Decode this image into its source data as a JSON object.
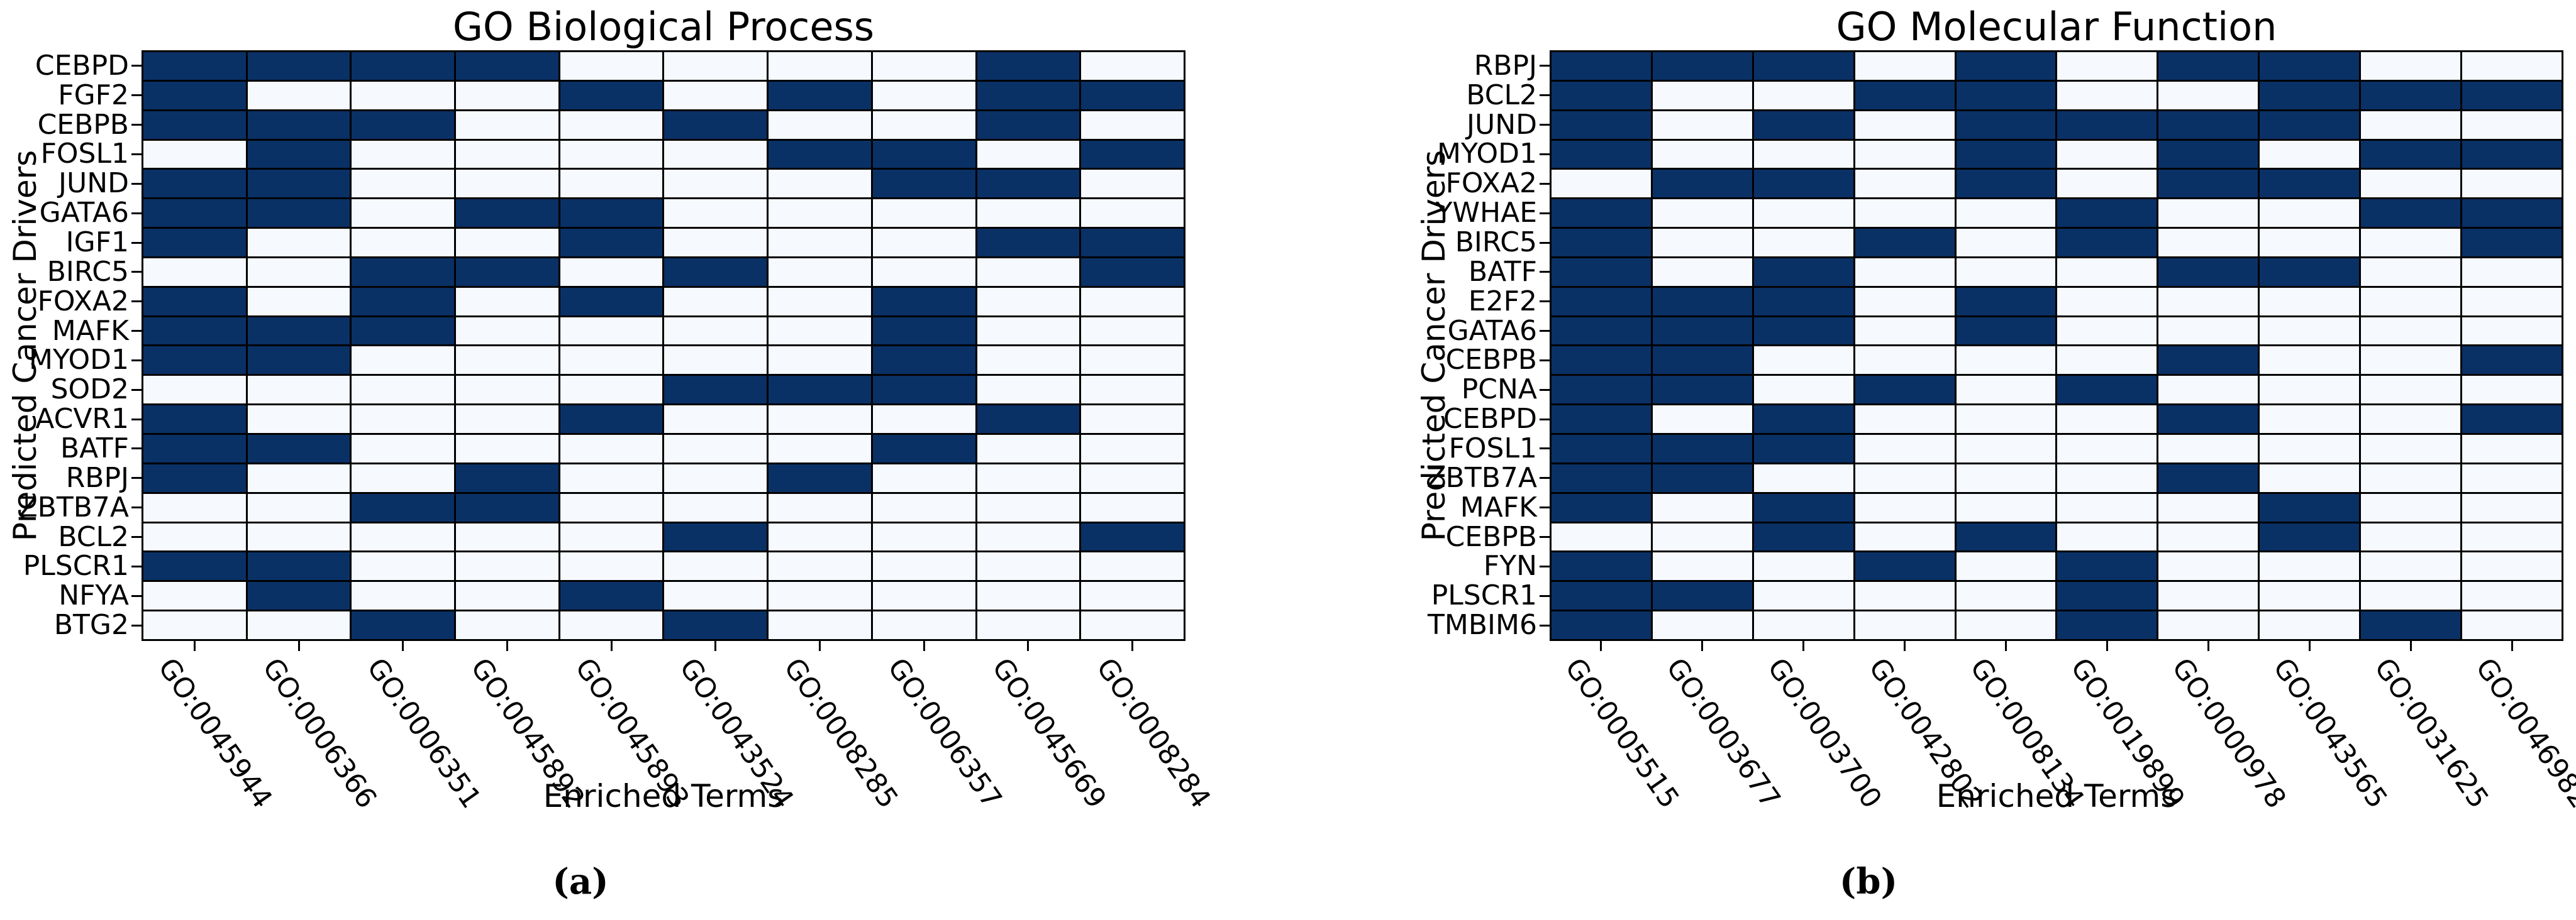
{
  "figure": {
    "background": "#ffffff",
    "cell_on_color": "#0a3166",
    "cell_off_color": "#f6f9fd",
    "grid_line_color": "#000000",
    "captions": {
      "a": "(a)",
      "b": "(b)"
    }
  },
  "chart_data": [
    {
      "type": "heatmap",
      "title": "GO Biological Process",
      "xlabel": "Enriched Terms",
      "ylabel": "Predicted Cancer Drivers",
      "value_encoding": "1 = enriched (dark navy cell), 0 = not enriched (pale cell)",
      "rows": [
        "CEBPD",
        "FGF2",
        "CEBPB",
        "FOSL1",
        "JUND",
        "GATA6",
        "IGF1",
        "BIRC5",
        "FOXA2",
        "MAFK",
        "MYOD1",
        "SOD2",
        "ACVR1",
        "BATF",
        "RBPJ",
        "ZBTB7A",
        "BCL2",
        "PLSCR1",
        "NFYA",
        "BTG2"
      ],
      "columns": [
        "GO:0045944",
        "GO:0006366",
        "GO:0006351",
        "GO:0045892",
        "GO:0045893",
        "GO:0043524",
        "GO:0008285",
        "GO:0006357",
        "GO:0045669",
        "GO:0008284"
      ],
      "values": [
        [
          1,
          1,
          1,
          1,
          0,
          0,
          0,
          0,
          1,
          0
        ],
        [
          1,
          0,
          0,
          0,
          1,
          0,
          1,
          0,
          1,
          1
        ],
        [
          1,
          1,
          1,
          0,
          0,
          1,
          0,
          0,
          1,
          0
        ],
        [
          0,
          1,
          0,
          0,
          0,
          0,
          1,
          1,
          0,
          1
        ],
        [
          1,
          1,
          0,
          0,
          0,
          0,
          0,
          1,
          1,
          0
        ],
        [
          1,
          1,
          0,
          1,
          1,
          0,
          0,
          0,
          0,
          0
        ],
        [
          1,
          0,
          0,
          0,
          1,
          0,
          0,
          0,
          1,
          1
        ],
        [
          0,
          0,
          1,
          1,
          0,
          1,
          0,
          0,
          0,
          1
        ],
        [
          1,
          0,
          1,
          0,
          1,
          0,
          0,
          1,
          0,
          0
        ],
        [
          1,
          1,
          1,
          0,
          0,
          0,
          0,
          1,
          0,
          0
        ],
        [
          1,
          1,
          0,
          0,
          0,
          0,
          0,
          1,
          0,
          0
        ],
        [
          0,
          0,
          0,
          0,
          0,
          1,
          1,
          1,
          0,
          0
        ],
        [
          1,
          0,
          0,
          0,
          1,
          0,
          0,
          0,
          1,
          0
        ],
        [
          1,
          1,
          0,
          0,
          0,
          0,
          0,
          1,
          0,
          0
        ],
        [
          1,
          0,
          0,
          1,
          0,
          0,
          1,
          0,
          0,
          0
        ],
        [
          0,
          0,
          1,
          1,
          0,
          0,
          0,
          0,
          0,
          0
        ],
        [
          0,
          0,
          0,
          0,
          0,
          1,
          0,
          0,
          0,
          1
        ],
        [
          1,
          1,
          0,
          0,
          0,
          0,
          0,
          0,
          0,
          0
        ],
        [
          0,
          1,
          0,
          0,
          1,
          0,
          0,
          0,
          0,
          0
        ],
        [
          0,
          0,
          1,
          0,
          0,
          1,
          0,
          0,
          0,
          0
        ]
      ]
    },
    {
      "type": "heatmap",
      "title": "GO Molecular Function",
      "xlabel": "Enriched Terms",
      "ylabel": "Predicted Cancer Drivers",
      "value_encoding": "1 = enriched (dark navy cell), 0 = not enriched (pale cell)",
      "rows": [
        "RBPJ",
        "BCL2",
        "JUND",
        "MYOD1",
        "FOXA2",
        "YWHAE",
        "BIRC5",
        "BATF",
        "E2F2",
        "GATA6",
        "CEBPB",
        "PCNA",
        "CEBPD",
        "FOSL1",
        "ZBTB7A",
        "MAFK",
        "CEBPB",
        "FYN",
        "PLSCR1",
        "TMBIM6"
      ],
      "columns": [
        "GO:0005515",
        "GO:0003677",
        "GO:0003700",
        "GO:0042802",
        "GO:0008134",
        "GO:0019899",
        "GO:0000978",
        "GO:0043565",
        "GO:0031625",
        "GO:0046982"
      ],
      "values": [
        [
          1,
          1,
          1,
          0,
          1,
          0,
          1,
          1,
          0,
          0
        ],
        [
          1,
          0,
          0,
          1,
          1,
          0,
          0,
          1,
          1,
          1
        ],
        [
          1,
          0,
          1,
          0,
          1,
          1,
          1,
          1,
          0,
          0
        ],
        [
          1,
          0,
          0,
          0,
          1,
          0,
          1,
          0,
          1,
          1
        ],
        [
          0,
          1,
          1,
          0,
          1,
          0,
          1,
          1,
          0,
          0
        ],
        [
          1,
          0,
          0,
          0,
          0,
          1,
          0,
          0,
          1,
          1
        ],
        [
          1,
          0,
          0,
          1,
          0,
          1,
          0,
          0,
          0,
          1
        ],
        [
          1,
          0,
          1,
          0,
          0,
          0,
          1,
          1,
          0,
          0
        ],
        [
          1,
          1,
          1,
          0,
          1,
          0,
          0,
          0,
          0,
          0
        ],
        [
          1,
          1,
          1,
          0,
          1,
          0,
          0,
          0,
          0,
          0
        ],
        [
          1,
          1,
          0,
          0,
          0,
          0,
          1,
          0,
          0,
          1
        ],
        [
          1,
          1,
          0,
          1,
          0,
          1,
          0,
          0,
          0,
          0
        ],
        [
          1,
          0,
          1,
          0,
          0,
          0,
          1,
          0,
          0,
          1
        ],
        [
          1,
          1,
          1,
          0,
          0,
          0,
          0,
          0,
          0,
          0
        ],
        [
          1,
          1,
          0,
          0,
          0,
          0,
          1,
          0,
          0,
          0
        ],
        [
          1,
          0,
          1,
          0,
          0,
          0,
          0,
          1,
          0,
          0
        ],
        [
          0,
          0,
          1,
          0,
          1,
          0,
          0,
          1,
          0,
          0
        ],
        [
          1,
          0,
          0,
          1,
          0,
          1,
          0,
          0,
          0,
          0
        ],
        [
          1,
          1,
          0,
          0,
          0,
          1,
          0,
          0,
          0,
          0
        ],
        [
          1,
          0,
          0,
          0,
          0,
          1,
          0,
          0,
          1,
          0
        ]
      ]
    }
  ]
}
